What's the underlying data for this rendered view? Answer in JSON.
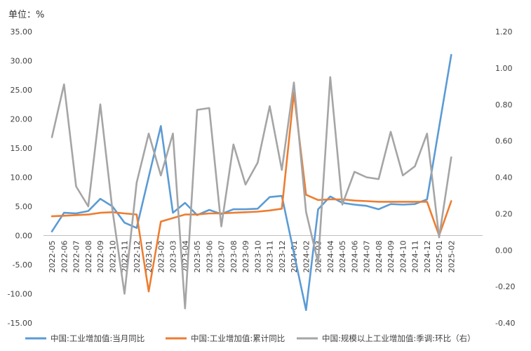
{
  "unit_label": "单位：%",
  "chart_data": {
    "type": "line",
    "categories": [
      "2022-05",
      "2022-06",
      "2022-07",
      "2022-08",
      "2022-09",
      "2022-10",
      "2022-11",
      "2022-12",
      "2023-01",
      "2023-02",
      "2023-03",
      "2023-04",
      "2023-05",
      "2023-06",
      "2023-07",
      "2023-08",
      "2023-09",
      "2023-10",
      "2023-11",
      "2023-12",
      "2024-01",
      "2024-02",
      "2024-03",
      "2024-04",
      "2024-05",
      "2024-06",
      "2024-07",
      "2024-08",
      "2024-09",
      "2024-10",
      "2024-11",
      "2024-12",
      "2025-01",
      "2025-02"
    ],
    "y_left": {
      "ylim": [
        -15,
        35
      ],
      "ticks": [
        "35.00",
        "30.00",
        "25.00",
        "20.00",
        "15.00",
        "10.00",
        "5.00",
        "0.00",
        "-5.00",
        "-10.00",
        "-15.00"
      ]
    },
    "y_right": {
      "ylim": [
        -0.4,
        1.2
      ],
      "ticks": [
        "1.20",
        "1.00",
        "0.80",
        "0.60",
        "0.40",
        "0.20",
        "0.00",
        "-0.20",
        "-0.40"
      ]
    },
    "series": [
      {
        "name": "中国:工业增加值:当月同比",
        "axis": "left",
        "color": "#5b9bd5",
        "values": [
          0.7,
          3.9,
          3.8,
          4.2,
          6.3,
          5.0,
          2.2,
          1.3,
          null,
          18.8,
          3.9,
          5.6,
          3.5,
          4.4,
          3.7,
          4.5,
          4.5,
          4.6,
          6.6,
          6.8,
          null,
          -12.8,
          4.5,
          6.7,
          5.6,
          5.3,
          5.1,
          4.5,
          5.4,
          5.3,
          5.4,
          6.2,
          null,
          31.0
        ]
      },
      {
        "name": "中国:工业增加值:累计同比",
        "axis": "left",
        "color": "#ed7d31",
        "values": [
          3.3,
          3.4,
          3.5,
          3.6,
          3.9,
          4.0,
          3.8,
          3.6,
          -9.6,
          2.4,
          3.0,
          3.6,
          3.6,
          3.8,
          3.8,
          3.9,
          4.0,
          4.1,
          4.3,
          4.6,
          24.5,
          7.0,
          6.1,
          6.2,
          6.2,
          6.0,
          5.9,
          5.8,
          5.8,
          5.8,
          5.8,
          5.8,
          0.0,
          5.9
        ]
      },
      {
        "name": "中国:规模以上工业增加值:季调:环比（右）",
        "axis": "right",
        "color": "#a5a5a5",
        "values": [
          0.62,
          0.91,
          0.35,
          0.24,
          0.8,
          0.22,
          -0.24,
          0.37,
          0.64,
          0.41,
          0.64,
          -0.32,
          0.77,
          0.78,
          0.13,
          0.58,
          0.36,
          0.48,
          0.79,
          0.44,
          0.92,
          0.21,
          -0.07,
          0.95,
          0.25,
          0.43,
          0.4,
          0.39,
          0.65,
          0.41,
          0.46,
          0.64,
          0.07,
          0.51
        ]
      }
    ],
    "legend": "bottom",
    "grid": false
  }
}
